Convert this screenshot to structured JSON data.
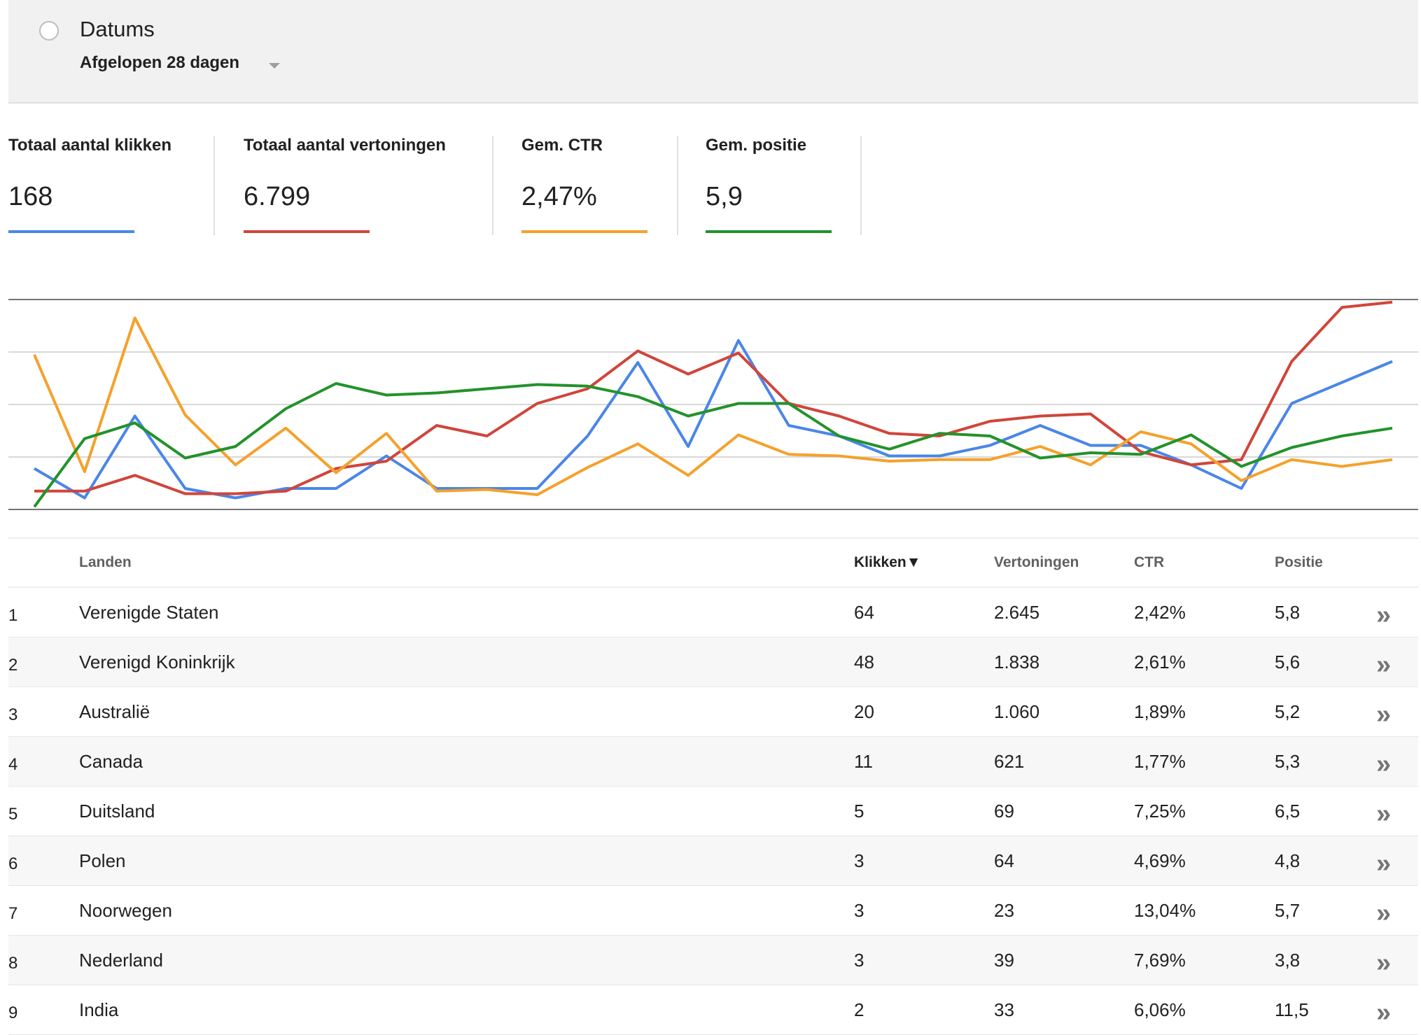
{
  "filter": {
    "label": "Datums",
    "value": "Afgelopen 28 dagen"
  },
  "metrics": [
    {
      "label": "Totaal aantal klikken",
      "value": "168",
      "color": "#4a86e8"
    },
    {
      "label": "Totaal aantal vertoningen",
      "value": "6.799",
      "color": "#d0453a"
    },
    {
      "label": "Gem. CTR",
      "value": "2,47%",
      "color": "#f4a12c"
    },
    {
      "label": "Gem. positie",
      "value": "5,9",
      "color": "#23922b"
    }
  ],
  "chart_data": {
    "type": "line",
    "grid": true,
    "ylim": [
      0,
      4
    ],
    "x": [
      1,
      2,
      3,
      4,
      5,
      6,
      7,
      8,
      9,
      10,
      11,
      12,
      13,
      14,
      15,
      16,
      17,
      18,
      19,
      20,
      21,
      22,
      23,
      24,
      25,
      26,
      27,
      28
    ],
    "series": [
      {
        "metric": "Totaal aantal klikken",
        "color": "#4a86e8",
        "values": [
          0.78,
          0.22,
          1.78,
          0.4,
          0.22,
          0.4,
          0.4,
          1.02,
          0.4,
          0.4,
          0.4,
          1.4,
          2.8,
          1.2,
          3.22,
          1.6,
          1.4,
          1.02,
          1.02,
          1.22,
          1.6,
          1.22,
          1.22,
          0.85,
          0.4,
          2.02,
          2.42,
          2.82
        ]
      },
      {
        "metric": "Totaal aantal vertoningen",
        "color": "#d0453a",
        "values": [
          0.35,
          0.35,
          0.65,
          0.3,
          0.3,
          0.35,
          0.78,
          0.92,
          1.6,
          1.4,
          2.02,
          2.3,
          3.02,
          2.58,
          2.98,
          2.02,
          1.78,
          1.45,
          1.4,
          1.68,
          1.78,
          1.82,
          1.1,
          0.85,
          0.95,
          2.82,
          3.85,
          3.95
        ]
      },
      {
        "metric": "Gem. CTR",
        "color": "#f4a12c",
        "values": [
          2.95,
          0.72,
          3.65,
          1.8,
          0.85,
          1.55,
          0.7,
          1.45,
          0.35,
          0.38,
          0.28,
          0.8,
          1.25,
          0.65,
          1.42,
          1.05,
          1.02,
          0.92,
          0.95,
          0.95,
          1.2,
          0.85,
          1.48,
          1.25,
          0.55,
          0.95,
          0.82,
          0.95
        ]
      },
      {
        "metric": "Gem. positie",
        "color": "#23922b",
        "values": [
          0.05,
          1.35,
          1.65,
          0.98,
          1.2,
          1.92,
          2.4,
          2.18,
          2.22,
          2.3,
          2.38,
          2.35,
          2.15,
          1.78,
          2.02,
          2.02,
          1.4,
          1.15,
          1.45,
          1.4,
          0.98,
          1.08,
          1.05,
          1.42,
          0.82,
          1.18,
          1.4,
          1.55
        ]
      }
    ]
  },
  "table": {
    "headers": {
      "country": "Landen",
      "clicks": "Klikken",
      "sort_indicator": "▼",
      "impressions": "Vertoningen",
      "ctr": "CTR",
      "position": "Positie"
    },
    "row_action_icon": "double-chevron-right-icon",
    "rows": [
      {
        "rank": "1",
        "country": "Verenigde Staten",
        "clicks": "64",
        "impressions": "2.645",
        "ctr": "2,42%",
        "position": "5,8"
      },
      {
        "rank": "2",
        "country": "Verenigd Koninkrijk",
        "clicks": "48",
        "impressions": "1.838",
        "ctr": "2,61%",
        "position": "5,6"
      },
      {
        "rank": "3",
        "country": "Australië",
        "clicks": "20",
        "impressions": "1.060",
        "ctr": "1,89%",
        "position": "5,2"
      },
      {
        "rank": "4",
        "country": "Canada",
        "clicks": "11",
        "impressions": "621",
        "ctr": "1,77%",
        "position": "5,3"
      },
      {
        "rank": "5",
        "country": "Duitsland",
        "clicks": "5",
        "impressions": "69",
        "ctr": "7,25%",
        "position": "6,5"
      },
      {
        "rank": "6",
        "country": "Polen",
        "clicks": "3",
        "impressions": "64",
        "ctr": "4,69%",
        "position": "4,8"
      },
      {
        "rank": "7",
        "country": "Noorwegen",
        "clicks": "3",
        "impressions": "23",
        "ctr": "13,04%",
        "position": "5,7"
      },
      {
        "rank": "8",
        "country": "Nederland",
        "clicks": "3",
        "impressions": "39",
        "ctr": "7,69%",
        "position": "3,8"
      },
      {
        "rank": "9",
        "country": "India",
        "clicks": "2",
        "impressions": "33",
        "ctr": "6,06%",
        "position": "11,5"
      }
    ]
  }
}
